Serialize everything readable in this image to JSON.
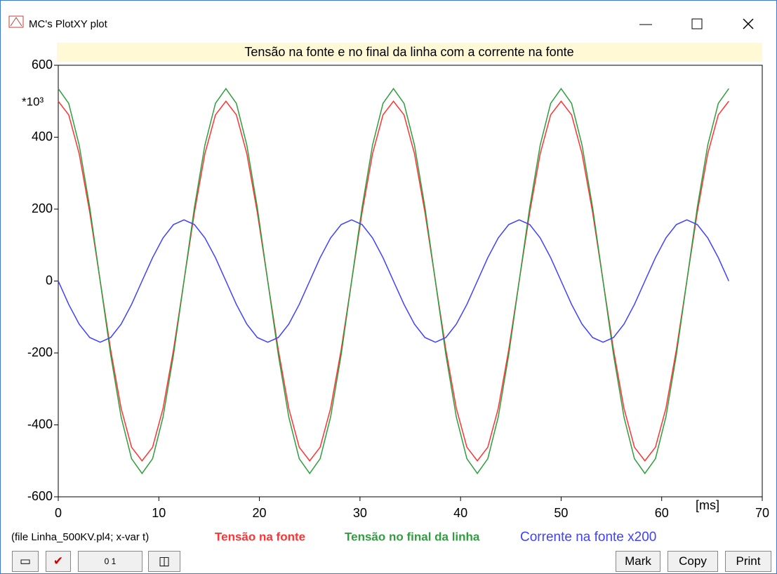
{
  "window": {
    "title": "MC's PlotXY plot",
    "buttons": [
      "Mark",
      "Copy",
      "Print"
    ]
  },
  "file_info": "(file Linha_500KV.pl4; x-var t)",
  "chart_data": {
    "type": "line",
    "title": "Tensão na fonte e no final da linha com a corrente na fonte",
    "y_multiplier": "*10³",
    "x_unit": "[ms]",
    "xlim": [
      0,
      70
    ],
    "xticks": [
      0,
      10,
      20,
      30,
      40,
      50,
      60,
      70
    ],
    "ylim": [
      -600,
      600
    ],
    "yticks": [
      -600,
      -400,
      -200,
      0,
      200,
      400,
      600
    ],
    "grid": false,
    "x": [
      0,
      1.04,
      2.08,
      3.13,
      4.17,
      5.21,
      6.25,
      7.29,
      8.33,
      9.38,
      10.42,
      11.46,
      12.5,
      13.54,
      14.58,
      15.63,
      16.67,
      17.71,
      18.75,
      19.79,
      20.83,
      21.88,
      22.92,
      23.96,
      25,
      26.04,
      27.08,
      28.13,
      29.17,
      30.21,
      31.25,
      32.29,
      33.33,
      34.38,
      35.42,
      36.46,
      37.5,
      38.54,
      39.58,
      40.63,
      41.67,
      42.71,
      43.75,
      44.79,
      45.83,
      46.88,
      47.92,
      48.96,
      50,
      51.04,
      52.08,
      53.13,
      54.17,
      55.21,
      56.25,
      57.29,
      58.33,
      59.38,
      60.42,
      61.46,
      62.5,
      63.54,
      64.58,
      65.63,
      66.67
    ],
    "series": [
      {
        "name": "Tensão na fonte",
        "color": "#ff3333",
        "values": [
          500,
          462,
          354,
          191,
          0,
          -191,
          -354,
          -462,
          -500,
          -462,
          -354,
          -191,
          0,
          191,
          354,
          462,
          500,
          462,
          354,
          191,
          0,
          -191,
          -354,
          -462,
          -500,
          -462,
          -354,
          -191,
          0,
          191,
          354,
          462,
          500,
          462,
          354,
          191,
          0,
          -191,
          -354,
          -462,
          -500,
          -462,
          -354,
          -191,
          0,
          191,
          354,
          462,
          500,
          462,
          354,
          191,
          0,
          -191,
          -354,
          -462,
          -500,
          -462,
          -354,
          -191,
          0,
          191,
          354,
          462,
          500
        ]
      },
      {
        "name": "Tensão no final da linha",
        "color": "#2e9e3e",
        "values": [
          535,
          494,
          378,
          205,
          0,
          -205,
          -378,
          -494,
          -535,
          -494,
          -378,
          -205,
          0,
          205,
          378,
          494,
          535,
          494,
          378,
          205,
          0,
          -205,
          -378,
          -494,
          -535,
          -494,
          -378,
          -205,
          0,
          205,
          378,
          494,
          535,
          494,
          378,
          205,
          0,
          -205,
          -378,
          -494,
          -535,
          -494,
          -378,
          -205,
          0,
          205,
          378,
          494,
          535,
          494,
          378,
          205,
          0,
          -205,
          -378,
          -494,
          -535,
          -494,
          -378,
          -205,
          0,
          205,
          378,
          494,
          535
        ]
      },
      {
        "name": "Corrente na fonte x200",
        "color": "#4040ff",
        "values": [
          0,
          -65,
          -120,
          -157,
          -170,
          -157,
          -120,
          -65,
          0,
          65,
          120,
          157,
          170,
          157,
          120,
          65,
          0,
          -65,
          -120,
          -157,
          -170,
          -157,
          -120,
          -65,
          0,
          65,
          120,
          157,
          170,
          157,
          120,
          65,
          0,
          -65,
          -120,
          -157,
          -170,
          -157,
          -120,
          -65,
          0,
          65,
          120,
          157,
          170,
          157,
          120,
          65,
          0,
          -65,
          -120,
          -157,
          -170,
          -157,
          -120,
          -65,
          0,
          65,
          120,
          157,
          170,
          157,
          120,
          65,
          0
        ]
      }
    ]
  }
}
